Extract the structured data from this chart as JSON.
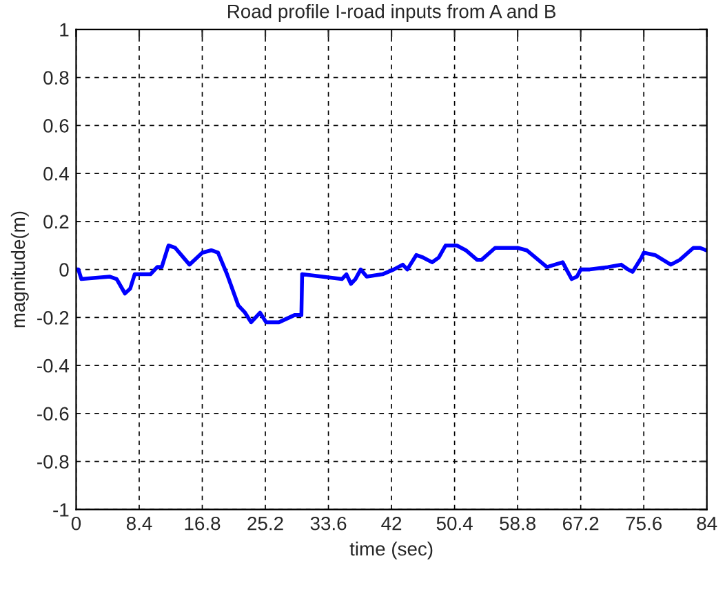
{
  "chart_data": {
    "type": "line",
    "title": "Road profile I-road inputs from A and B",
    "xlabel": "time (sec)",
    "ylabel": "magnitude(m)",
    "xlim": [
      0,
      84
    ],
    "xticks": [
      0,
      8.4,
      16.8,
      25.2,
      33.6,
      42,
      50.4,
      58.8,
      67.2,
      75.6,
      84
    ],
    "ylim": [
      -1,
      1
    ],
    "yticks": [
      -1,
      -0.8,
      -0.6,
      -0.4,
      -0.2,
      0,
      0.2,
      0.4,
      0.6,
      0.8,
      1
    ],
    "grid": true,
    "line_style": "solid",
    "marker": "none",
    "series": [
      {
        "color": "#0000ff",
        "x": [
          0,
          0.3,
          0.7,
          4.5,
          5.4,
          6.5,
          7.2,
          7.8,
          8.4,
          9.9,
          10.8,
          11.4,
          12.3,
          13.2,
          15.1,
          16.8,
          18.0,
          18.9,
          20.1,
          21.6,
          22.5,
          23.3,
          24.5,
          25.3,
          27.0,
          29.1,
          30.0,
          30.1,
          35.4,
          36.0,
          36.6,
          37.2,
          37.9,
          38.7,
          40.8,
          42.3,
          43.5,
          44.1,
          45.3,
          46.2,
          47.4,
          48.3,
          49.2,
          50.7,
          51.9,
          53.4,
          54.0,
          55.8,
          58.8,
          60.0,
          62.7,
          64.8,
          65.3,
          66.0,
          66.7,
          67.2,
          68.4,
          70.8,
          72.6,
          73.5,
          74.1,
          75.3,
          75.6,
          77.1,
          79.2,
          80.4,
          82.2,
          83.1,
          83.9
        ],
        "values": [
          0,
          0,
          -0.04,
          -0.03,
          -0.04,
          -0.1,
          -0.08,
          -0.02,
          -0.02,
          -0.02,
          0.01,
          0.01,
          0.1,
          0.09,
          0.02,
          0.07,
          0.08,
          0.07,
          -0.02,
          -0.15,
          -0.18,
          -0.22,
          -0.18,
          -0.22,
          -0.22,
          -0.19,
          -0.19,
          -0.02,
          -0.04,
          -0.02,
          -0.06,
          -0.04,
          0,
          -0.03,
          -0.02,
          0,
          0.02,
          0,
          0.06,
          0.05,
          0.03,
          0.05,
          0.1,
          0.1,
          0.08,
          0.04,
          0.04,
          0.09,
          0.09,
          0.08,
          0.01,
          0.03,
          0,
          -0.04,
          -0.03,
          0,
          0,
          0.01,
          0.02,
          0,
          -0.01,
          0.05,
          0.07,
          0.06,
          0.02,
          0.04,
          0.09,
          0.09,
          0.08
        ]
      }
    ]
  }
}
